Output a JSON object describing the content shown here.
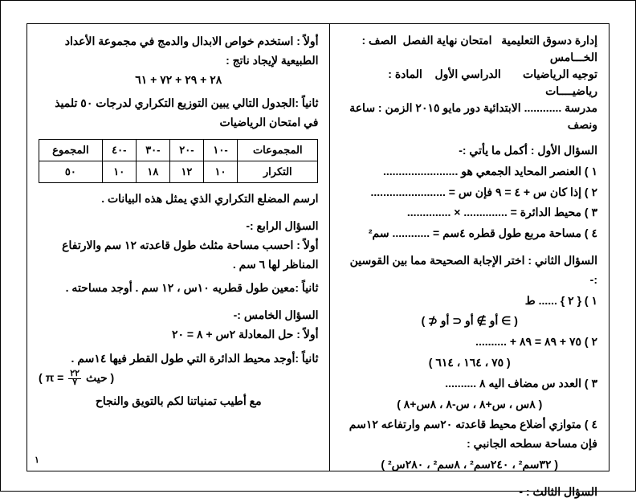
{
  "header": {
    "line1_a": "إدارة دسوق التعليمية",
    "line1_b": "امتحان نهاية الفصل",
    "line1_c": "الصف : الخـــامس",
    "line2_a": "توجيه الرياضيات",
    "line2_b": "الدراسي الأول",
    "line2_c": "المادة : رياضيــــات",
    "line3_a": "مدرسة ............",
    "line3_b": "الابتدائية دور مايو ٢٠١٥",
    "line3_c": "الزمن : ساعة",
    "line4": "ونصف"
  },
  "q1": {
    "title": "السؤال الأول : أكمل ما يأتي :-",
    "i1": "١ ) العنصر المحايد الجمعي هو ........................",
    "i2": "٢ ) إذا كان س + ٤ = ٩ فإن س = ........................",
    "i3": "٣ ) محيط الدائرة = .............. × ..............",
    "i4": "٤ ) مساحة مربع طول قطره ٤سم = ............ سم²"
  },
  "q2": {
    "title": "السؤال الثاني : اختر الإجابة الصحيحة مما بين القوسين :-",
    "i1a": "١ ) { ٢ } ...... ط",
    "i1b": "( ∋ أو ∌ أو ⊂ أو ⊄ )",
    "i2a": "٢ ) ٧٥ + ٨٩ = ٨٩ + ..........",
    "i2b": "( ٧٥ ، ١٦٤ ، ٦١٤ )",
    "i3a": "٣ ) العدد س مضاف اليه ٨ ..........",
    "i3b": "( ٨س ، س+٨ ، س-٨ ، ٨س+٨ )",
    "i4a": "٤ ) متوازي أضلاع محيط قاعدته ٢٠سم وارتفاعه ١٢سم فإن مساحة سطحه الجانبي :",
    "i4b": "( ٣٢سم² ، ٢٤٠سم² ، ٨سم² ، ٢٨٠س² )"
  },
  "q3": {
    "title": "السؤال الثالث : -"
  },
  "left": {
    "p1": "أولاً : استخدم خواص الابدال والدمج في مجموعة الأعداد الطبيعية لإيجاد ناتج :",
    "expr": "٢٨  +  ٢٩  +  ٧٢  +  ٦١",
    "p2": "ثانياً :الجدول التالي يبين التوزيع التكراري لدرجات ٥٠ تلميذ في امتحان الرياضيات",
    "table": {
      "h0": "المجموعات",
      "h1": "-١٠",
      "h2": "-٢٠",
      "h3": "-٣٠",
      "h4": "-٤٠",
      "h5": "المجموع",
      "r0": "التكرار",
      "r1": "١٠",
      "r2": "١٢",
      "r3": "١٨",
      "r4": "١٠",
      "r5": "٥٠"
    },
    "p3": "ارسم المضلع التكراري الذي يمثل هذه البيانات .",
    "q4t": "السؤال الرابع :-",
    "q4a": "أولاً : احسب مساحة مثلث طول قاعدته ١٢ سم والارتفاع المناظر لها ٦ سم .",
    "q4b": "ثانياً :معين طول قطريه ١٠س ، ١٢ سم . أوجد مساحته .",
    "q5t": "السؤال الخامس :-",
    "q5a": "أولاً : حل المعادلة  ٢س  +  ٨  =  ٢٠",
    "q5b_a": "ثانياً :أوجد محيط الدائرة التي طول القطر فيها ١٤سم .",
    "q5b_b": "( حيث ",
    "q5b_c": " = π )",
    "pi_num": "٢٢",
    "pi_den": "٧",
    "wish": "مع أطيب تمنياتنا لكم بالتويق والنجاح"
  },
  "pagenum": "١"
}
